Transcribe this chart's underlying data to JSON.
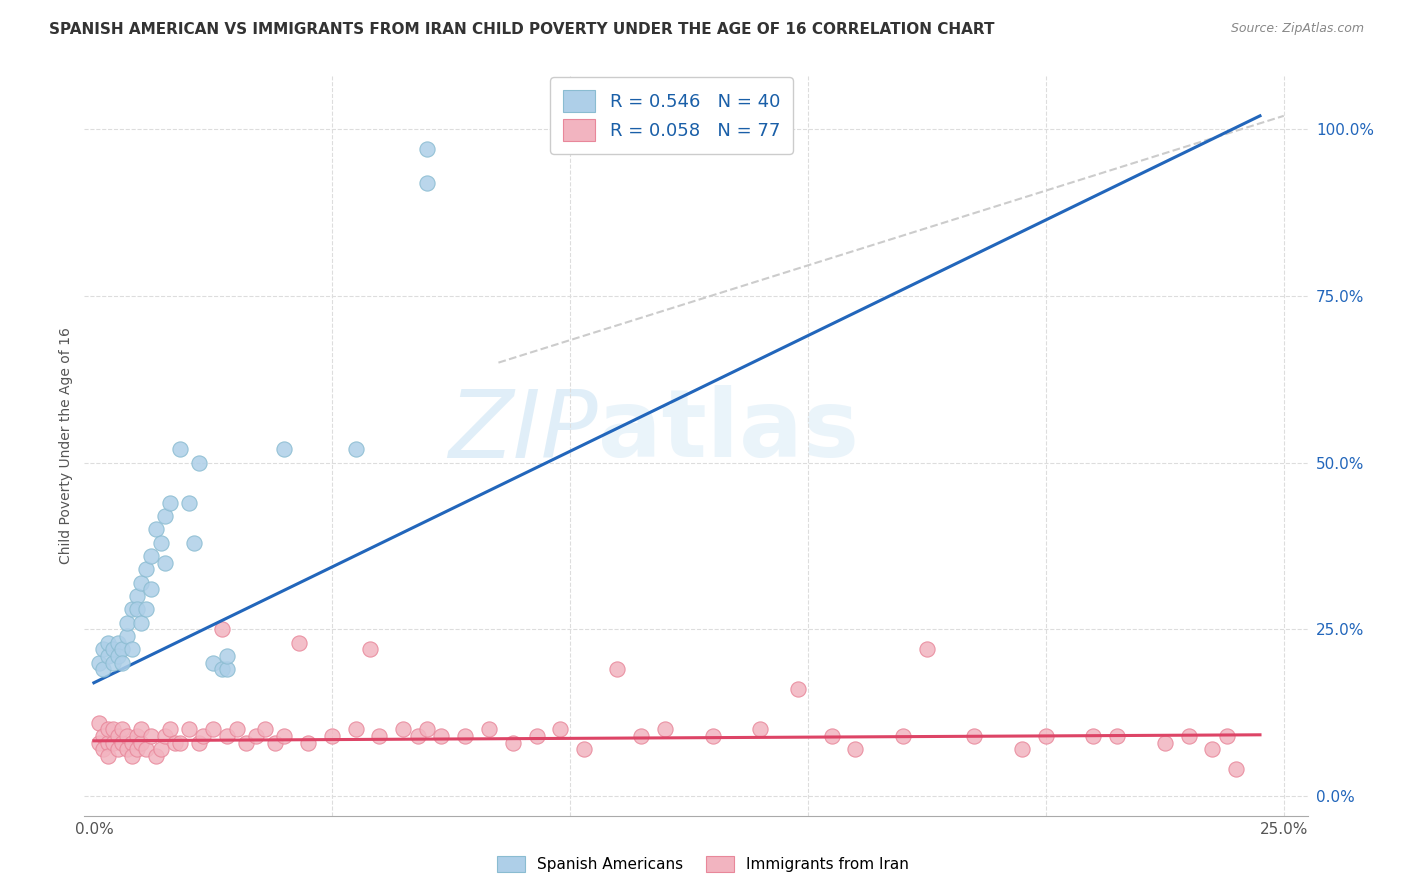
{
  "title": "SPANISH AMERICAN VS IMMIGRANTS FROM IRAN CHILD POVERTY UNDER THE AGE OF 16 CORRELATION CHART",
  "source": "Source: ZipAtlas.com",
  "ylabel": "Child Poverty Under the Age of 16",
  "xlim": [
    -0.002,
    0.255
  ],
  "ylim": [
    -0.03,
    1.08
  ],
  "xtick_positions": [
    0.0,
    0.05,
    0.1,
    0.15,
    0.2,
    0.25
  ],
  "xtick_labels": [
    "0.0%",
    "",
    "",
    "",
    "",
    "25.0%"
  ],
  "ytick_positions": [
    0.0,
    0.25,
    0.5,
    0.75,
    1.0
  ],
  "ytick_labels_right": [
    "0.0%",
    "25.0%",
    "50.0%",
    "75.0%",
    "100.0%"
  ],
  "legend_text1": "R = 0.546   N = 40",
  "legend_text2": "R = 0.058   N = 77",
  "blue_color": "#8abcd1",
  "blue_fill": "#aecfe8",
  "pink_color": "#e8879a",
  "pink_fill": "#f2b4c0",
  "blue_line_color": "#2266bb",
  "pink_line_color": "#dd4466",
  "dashed_color": "#cccccc",
  "watermark_color": "#cce4f4",
  "right_tick_color": "#2266bb",
  "grid_color": "#dddddd",
  "title_color": "#333333",
  "source_color": "#888888",
  "blue_scatter_x": [
    0.001,
    0.002,
    0.002,
    0.003,
    0.003,
    0.004,
    0.004,
    0.005,
    0.005,
    0.006,
    0.006,
    0.007,
    0.007,
    0.008,
    0.008,
    0.009,
    0.009,
    0.01,
    0.01,
    0.011,
    0.011,
    0.012,
    0.012,
    0.013,
    0.014,
    0.015,
    0.015,
    0.016,
    0.018,
    0.02,
    0.021,
    0.022,
    0.025,
    0.027,
    0.028,
    0.028,
    0.04,
    0.055,
    0.07,
    0.07
  ],
  "blue_scatter_y": [
    0.2,
    0.22,
    0.19,
    0.21,
    0.23,
    0.2,
    0.22,
    0.23,
    0.21,
    0.22,
    0.2,
    0.24,
    0.26,
    0.28,
    0.22,
    0.3,
    0.28,
    0.32,
    0.26,
    0.34,
    0.28,
    0.36,
    0.31,
    0.4,
    0.38,
    0.42,
    0.35,
    0.44,
    0.52,
    0.44,
    0.38,
    0.5,
    0.2,
    0.19,
    0.19,
    0.21,
    0.52,
    0.52,
    0.97,
    0.92
  ],
  "pink_scatter_x": [
    0.001,
    0.001,
    0.002,
    0.002,
    0.003,
    0.003,
    0.003,
    0.004,
    0.004,
    0.005,
    0.005,
    0.006,
    0.006,
    0.007,
    0.007,
    0.008,
    0.008,
    0.009,
    0.009,
    0.01,
    0.01,
    0.011,
    0.012,
    0.013,
    0.014,
    0.015,
    0.016,
    0.017,
    0.018,
    0.02,
    0.022,
    0.023,
    0.025,
    0.027,
    0.028,
    0.03,
    0.032,
    0.034,
    0.036,
    0.038,
    0.04,
    0.043,
    0.045,
    0.05,
    0.055,
    0.058,
    0.06,
    0.065,
    0.068,
    0.07,
    0.073,
    0.078,
    0.083,
    0.088,
    0.093,
    0.098,
    0.103,
    0.11,
    0.115,
    0.12,
    0.13,
    0.14,
    0.148,
    0.155,
    0.16,
    0.17,
    0.175,
    0.185,
    0.195,
    0.2,
    0.21,
    0.215,
    0.225,
    0.23,
    0.235,
    0.238,
    0.24
  ],
  "pink_scatter_y": [
    0.08,
    0.11,
    0.09,
    0.07,
    0.08,
    0.1,
    0.06,
    0.08,
    0.1,
    0.07,
    0.09,
    0.08,
    0.1,
    0.07,
    0.09,
    0.08,
    0.06,
    0.09,
    0.07,
    0.08,
    0.1,
    0.07,
    0.09,
    0.06,
    0.07,
    0.09,
    0.1,
    0.08,
    0.08,
    0.1,
    0.08,
    0.09,
    0.1,
    0.25,
    0.09,
    0.1,
    0.08,
    0.09,
    0.1,
    0.08,
    0.09,
    0.23,
    0.08,
    0.09,
    0.1,
    0.22,
    0.09,
    0.1,
    0.09,
    0.1,
    0.09,
    0.09,
    0.1,
    0.08,
    0.09,
    0.1,
    0.07,
    0.19,
    0.09,
    0.1,
    0.09,
    0.1,
    0.16,
    0.09,
    0.07,
    0.09,
    0.22,
    0.09,
    0.07,
    0.09,
    0.09,
    0.09,
    0.08,
    0.09,
    0.07,
    0.09,
    0.04
  ],
  "blue_line_x": [
    0.0,
    0.245
  ],
  "blue_line_y": [
    0.17,
    1.02
  ],
  "pink_line_x": [
    0.0,
    0.245
  ],
  "pink_line_y": [
    0.083,
    0.092
  ],
  "dash_line_x": [
    0.085,
    0.25
  ],
  "dash_line_y": [
    0.65,
    1.02
  ],
  "watermark_zip": "ZIP",
  "watermark_atlas": "atlas",
  "legend_bottom1": "Spanish Americans",
  "legend_bottom2": "Immigrants from Iran"
}
